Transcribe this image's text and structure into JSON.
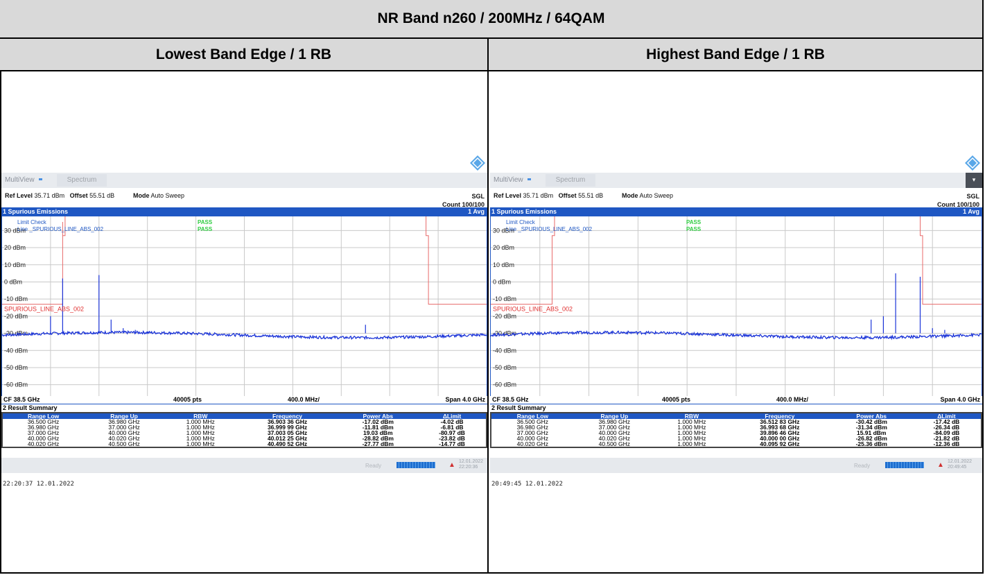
{
  "title": "NR Band n260 / 200MHz / 64QAM",
  "columns": [
    {
      "heading": "Lowest Band Edge / 1 RB",
      "multiview": "MultiView",
      "tab": "Spectrum",
      "ref_level_label": "Ref Level",
      "ref_level": "35.71 dBm",
      "offset_label": "Offset",
      "offset": "55.51 dB",
      "mode_label": "Mode",
      "mode": "Auto Sweep",
      "sgl": "SGL",
      "count": "Count 100/100",
      "panel_title": "1 Spurious Emissions",
      "avg": "1 Avg",
      "limit_check": "Limit Check",
      "line_label": "Line _SPURIOUS_LINE_ABS_002",
      "pass1": "PASS",
      "pass2": "PASS",
      "limit_name": "SPURIOUS_LINE_ABS_002",
      "y_ticks": [
        "30 dBm",
        "20 dBm",
        "10 dBm",
        "0 dBm",
        "-10 dBm",
        "-20 dBm",
        "-30 dBm",
        "-40 dBm",
        "-50 dBm",
        "-60 dBm"
      ],
      "cf": "CF 38.5 GHz",
      "pts": "40005 pts",
      "div": "400.0 MHz/",
      "span": "Span 4.0 GHz",
      "result_title": "2 Result Summary",
      "headers": [
        "Range Low",
        "Range Up",
        "RBW",
        "Frequency",
        "Power Abs",
        "ΔLimit"
      ],
      "rows": [
        [
          "36.500 GHz",
          "36.980 GHz",
          "1.000 MHz",
          "36.903 36 GHz",
          "-17.02 dBm",
          "-4.02 dB"
        ],
        [
          "36.980 GHz",
          "37.000 GHz",
          "1.000 MHz",
          "36.999 99 GHz",
          "-11.81 dBm",
          "-6.81 dB"
        ],
        [
          "37.000 GHz",
          "40.000 GHz",
          "1.000 MHz",
          "37.003 05 GHz",
          "19.03 dBm",
          "-80.97 dB"
        ],
        [
          "40.000 GHz",
          "40.020 GHz",
          "1.000 MHz",
          "40.012 25 GHz",
          "-28.82 dBm",
          "-23.82 dB"
        ],
        [
          "40.020 GHz",
          "40.500 GHz",
          "1.000 MHz",
          "40.490 52 GHz",
          "-27.77 dBm",
          "-14.77 dB"
        ]
      ],
      "status": "Ready",
      "status_date": "12.01.2022",
      "status_time": "22:20:36",
      "timestamp": "22:20:37  12.01.2022",
      "spurs": [
        [
          37.0,
          2.0
        ],
        [
          37.3,
          4.0
        ],
        [
          36.9,
          -20.0
        ],
        [
          37.4,
          -22.0
        ],
        [
          37.5,
          -27.0
        ],
        [
          37.6,
          -28.0
        ],
        [
          37.7,
          -29.0
        ],
        [
          39.5,
          -25.0
        ]
      ],
      "limit": [
        [
          36.5,
          -13
        ],
        [
          37.0,
          -13
        ],
        [
          37.0,
          35
        ],
        [
          37.0,
          27
        ],
        [
          37.02,
          27
        ],
        [
          37.02,
          40
        ],
        [
          40.0,
          40
        ],
        [
          40.0,
          27
        ],
        [
          40.02,
          27
        ],
        [
          40.02,
          -13
        ],
        [
          40.5,
          -13
        ]
      ]
    },
    {
      "heading": "Highest Band Edge / 1 RB",
      "multiview": "MultiView",
      "tab": "Spectrum",
      "ref_level_label": "Ref Level",
      "ref_level": "35.71 dBm",
      "offset_label": "Offset",
      "offset": "55.51 dB",
      "mode_label": "Mode",
      "mode": "Auto Sweep",
      "sgl": "SGL",
      "count": "Count 100/100",
      "panel_title": "1 Spurious Emissions",
      "avg": "1 Avg",
      "limit_check": "Limit Check",
      "line_label": "Line _SPURIOUS_LINE_ABS_002",
      "pass1": "PASS",
      "pass2": "PASS",
      "limit_name": "SPURIOUS_LINE_ABS_002",
      "y_ticks": [
        "30 dBm",
        "20 dBm",
        "10 dBm",
        "0 dBm",
        "-10 dBm",
        "-20 dBm",
        "-30 dBm",
        "-40 dBm",
        "-50 dBm",
        "-60 dBm"
      ],
      "cf": "CF 38.5 GHz",
      "pts": "40005 pts",
      "div": "400.0 MHz/",
      "span": "Span 4.0 GHz",
      "result_title": "2 Result Summary",
      "headers": [
        "Range Low",
        "Range Up",
        "RBW",
        "Frequency",
        "Power Abs",
        "ΔLimit"
      ],
      "rows": [
        [
          "36.500 GHz",
          "36.980 GHz",
          "1.000 MHz",
          "36.512 83 GHz",
          "-30.42 dBm",
          "-17.42 dB"
        ],
        [
          "36.980 GHz",
          "37.000 GHz",
          "1.000 MHz",
          "36.993 68 GHz",
          "-31.34 dBm",
          "-26.34 dB"
        ],
        [
          "37.000 GHz",
          "40.000 GHz",
          "1.000 MHz",
          "39.896 46 GHz",
          "15.91 dBm",
          "-84.09 dB"
        ],
        [
          "40.000 GHz",
          "40.020 GHz",
          "1.000 MHz",
          "40.000 00 GHz",
          "-26.82 dBm",
          "-21.82 dB"
        ],
        [
          "40.020 GHz",
          "40.500 GHz",
          "1.000 MHz",
          "40.095 92 GHz",
          "-25.36 dBm",
          "-12.36 dB"
        ]
      ],
      "status": "Ready",
      "status_date": "12.01.2022",
      "status_time": "20:49:45",
      "timestamp": "20:49:45  12.01.2022",
      "spurs": [
        [
          39.8,
          5.0
        ],
        [
          40.0,
          3.0
        ],
        [
          39.7,
          -20.0
        ],
        [
          39.6,
          -22.0
        ],
        [
          40.1,
          -27.0
        ],
        [
          40.2,
          -28.0
        ]
      ],
      "limit": [
        [
          36.5,
          -13
        ],
        [
          37.0,
          -13
        ],
        [
          37.0,
          27
        ],
        [
          37.02,
          27
        ],
        [
          37.02,
          40
        ],
        [
          40.0,
          40
        ],
        [
          40.0,
          27
        ],
        [
          40.02,
          27
        ],
        [
          40.02,
          -13
        ],
        [
          40.5,
          -13
        ]
      ]
    }
  ],
  "colors": {
    "trace": "#1a33d8",
    "limit": "#e86a6a",
    "pass": "#2ecc40",
    "accent": "#1f57c3"
  }
}
